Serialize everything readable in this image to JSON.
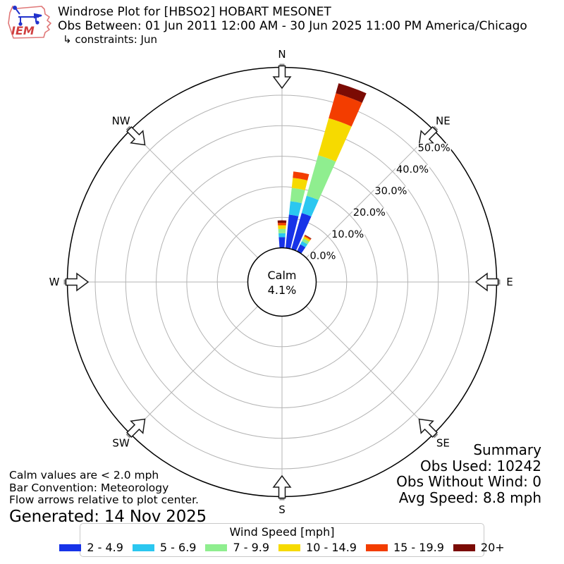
{
  "header": {
    "logo_text": "IEM",
    "title": "Windrose Plot for [HBSO2] HOBART MESONET",
    "subtitle": "Obs Between: 01 Jun 2011 12:00 AM - 30 Jun 2025 11:00 PM America/Chicago",
    "constraints": "↳ constraints: Jun"
  },
  "summary": {
    "title": "Summary",
    "obs_used": "Obs Used: 10242",
    "obs_without_wind": "Obs Without Wind: 0",
    "avg_speed": "Avg Speed: 8.8 mph"
  },
  "notes": {
    "calm_note": "Calm values are < 2.0 mph",
    "convention_note": "Bar Convention: Meteorology",
    "arrow_note": "Flow arrows relative to plot center.",
    "generated": "Generated: 14 Nov 2025"
  },
  "legend": {
    "title": "Wind Speed [mph]"
  },
  "calm_center": {
    "label": "Calm",
    "value": "4.1%"
  },
  "chart_data": {
    "type": "windrose",
    "units": "mph",
    "calm_percent": 4.1,
    "bar_half_width_deg": 4.1,
    "direction_sector_deg": 10,
    "grid_color": "#b4b4b4",
    "speed_bins": [
      {
        "label": "2 - 4.9",
        "color": "#1733e8"
      },
      {
        "label": "5 - 6.9",
        "color": "#2bc7f0"
      },
      {
        "label": "7 - 9.9",
        "color": "#8fee8f"
      },
      {
        "label": "10 - 14.9",
        "color": "#f6da00"
      },
      {
        "label": "15 - 19.9",
        "color": "#f33d00"
      },
      {
        "label": "20+",
        "color": "#7b0b04"
      }
    ],
    "bars": [
      {
        "direction_deg": 0,
        "values": [
          3.5,
          1.3,
          1.4,
          1.2,
          0.8,
          0.8
        ]
      },
      {
        "direction_deg": 10,
        "values": [
          11.0,
          4.4,
          4.4,
          3.3,
          2.1,
          0.0
        ]
      },
      {
        "direction_deg": 20,
        "values": [
          12.3,
          5.9,
          13.8,
          12.6,
          8.5,
          3.4
        ]
      },
      {
        "direction_deg": 30,
        "values": [
          2.5,
          1.2,
          1.0,
          0.7,
          0.4,
          0.2
        ]
      }
    ],
    "radial_ticks": [
      {
        "pct": 0,
        "label": "0.0%"
      },
      {
        "pct": 10,
        "label": "10.0%"
      },
      {
        "pct": 20,
        "label": "20.0%"
      },
      {
        "pct": 30,
        "label": "30.0%"
      },
      {
        "pct": 40,
        "label": "40.0%"
      },
      {
        "pct": 50,
        "label": "50.0%"
      }
    ],
    "radial_label_azimuth_deg": 45,
    "compass_labels": [
      "N",
      "NE",
      "E",
      "SE",
      "S",
      "SW",
      "W",
      "NW"
    ]
  }
}
